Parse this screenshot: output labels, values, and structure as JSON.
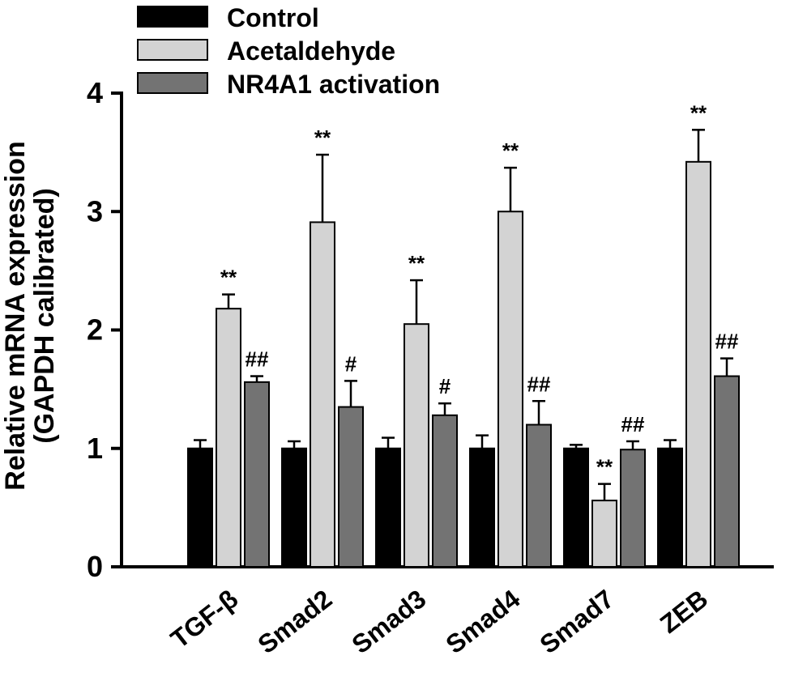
{
  "chart_data": {
    "type": "bar",
    "ylabel_line1": "Relative mRNA expression",
    "ylabel_line2": "(GAPDH calibrated)",
    "ylim": [
      0,
      4
    ],
    "yticks": [
      0,
      1,
      2,
      3,
      4
    ],
    "grid": false,
    "legend_position": "top-left",
    "axis_color": "#000000",
    "categories": [
      "TGF-β",
      "Smad2",
      "Smad3",
      "Smad4",
      "Smad7",
      "ZEB"
    ],
    "series": [
      {
        "name": "Control",
        "color": "#000000",
        "values": [
          1.0,
          1.0,
          1.0,
          1.0,
          1.0,
          1.0
        ],
        "errors": [
          0.07,
          0.06,
          0.09,
          0.11,
          0.03,
          0.07
        ],
        "annotations": [
          "",
          "",
          "",
          "",
          "",
          ""
        ]
      },
      {
        "name": "Acetaldehyde",
        "color": "#d3d3d3",
        "values": [
          2.18,
          2.91,
          2.05,
          3.0,
          0.56,
          3.42
        ],
        "errors": [
          0.12,
          0.57,
          0.37,
          0.37,
          0.14,
          0.27
        ],
        "annotations": [
          "**",
          "**",
          "**",
          "**",
          "**",
          "**"
        ]
      },
      {
        "name": "NR4A1 activation",
        "color": "#737373",
        "values": [
          1.56,
          1.35,
          1.28,
          1.2,
          0.99,
          1.61
        ],
        "errors": [
          0.05,
          0.22,
          0.1,
          0.2,
          0.07,
          0.15
        ],
        "annotations": [
          "##",
          "#",
          "#",
          "##",
          "##",
          "##"
        ]
      }
    ]
  }
}
